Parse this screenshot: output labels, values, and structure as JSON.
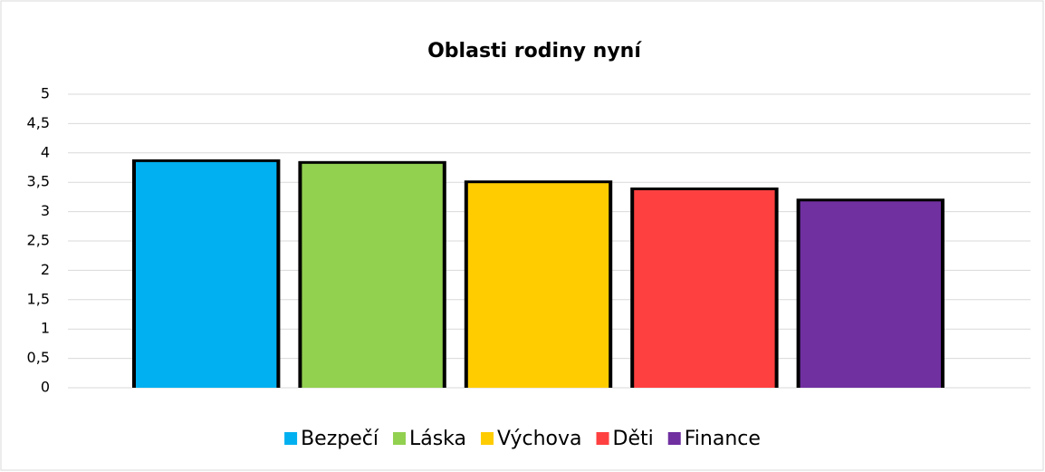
{
  "chart_data": {
    "type": "bar",
    "title": "Oblasti rodiny nyní",
    "categories": [
      null
    ],
    "series": [
      {
        "name": "Bezpečí",
        "color": "#00b0f0",
        "values": [
          3.86
        ]
      },
      {
        "name": "Láska",
        "color": "#92d050",
        "values": [
          3.83
        ]
      },
      {
        "name": "Výchova",
        "color": "#ffcc00",
        "values": [
          3.5
        ]
      },
      {
        "name": "Děti",
        "color": "#ff4040",
        "values": [
          3.38
        ]
      },
      {
        "name": "Finance",
        "color": "#7030a0",
        "values": [
          3.19
        ]
      }
    ],
    "ylim": [
      0,
      5
    ],
    "yticks": [
      0,
      {
        "value": 0.5,
        "label": "0,5"
      },
      1,
      {
        "value": 1.5,
        "label": "1,5"
      },
      2,
      {
        "value": 2.5,
        "label": "2,5"
      },
      3,
      {
        "value": 3.5,
        "label": "3,5"
      },
      4,
      {
        "value": 4.5,
        "label": "4,5"
      },
      5
    ],
    "grid": true,
    "legend": "bottom"
  }
}
